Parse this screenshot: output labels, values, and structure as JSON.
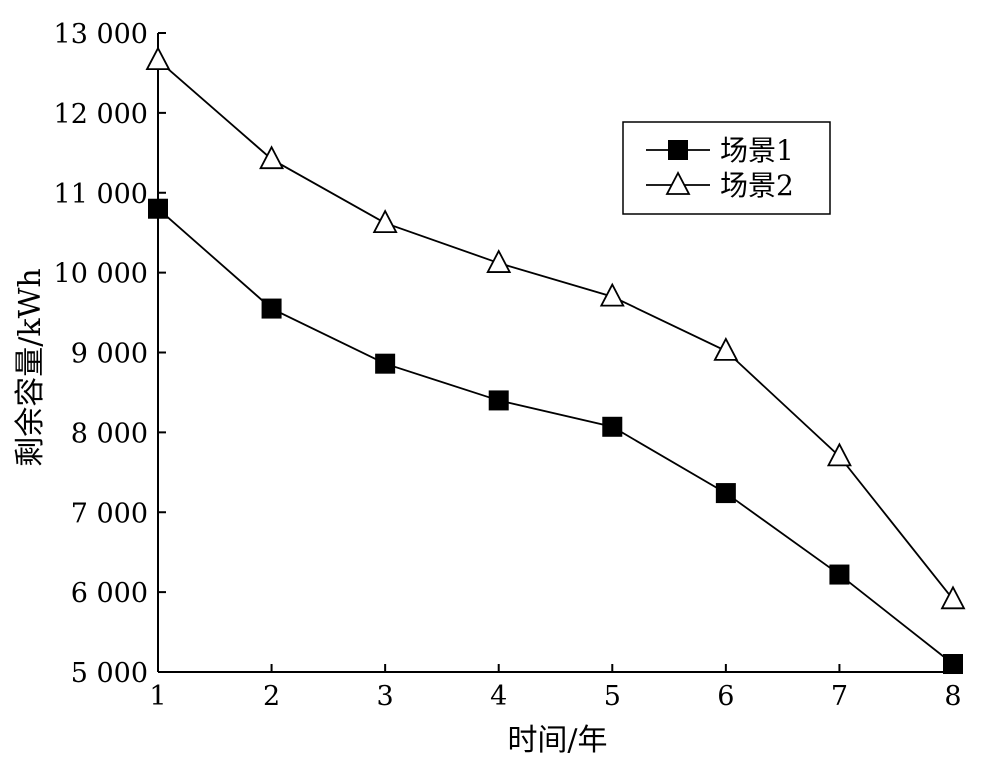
{
  "chart_data": {
    "type": "line",
    "title": "",
    "xlabel": "时间/年",
    "ylabel": "剩余容量/kWh",
    "x": [
      1,
      2,
      3,
      4,
      5,
      6,
      7,
      8
    ],
    "xlim": [
      1,
      8
    ],
    "ylim": [
      5000,
      13000
    ],
    "yticks": [
      5000,
      6000,
      7000,
      8000,
      9000,
      10000,
      11000,
      12000,
      13000
    ],
    "ytick_labels": [
      "5 000",
      "6 000",
      "7 000",
      "8 000",
      "9 000",
      "10 000",
      "11 000",
      "12 000",
      "13 000"
    ],
    "xtick_labels": [
      "1",
      "2",
      "3",
      "4",
      "5",
      "6",
      "7",
      "8"
    ],
    "grid": false,
    "legend_position": "top-right",
    "series": [
      {
        "name": "场景1",
        "marker": "filled-square",
        "color": "#000000",
        "values": [
          10800,
          9550,
          8860,
          8400,
          8070,
          7240,
          6220,
          5100
        ]
      },
      {
        "name": "场景2",
        "marker": "open-triangle",
        "color": "#000000",
        "values": [
          12660,
          11420,
          10620,
          10120,
          9700,
          9020,
          7700,
          5910
        ]
      }
    ]
  }
}
